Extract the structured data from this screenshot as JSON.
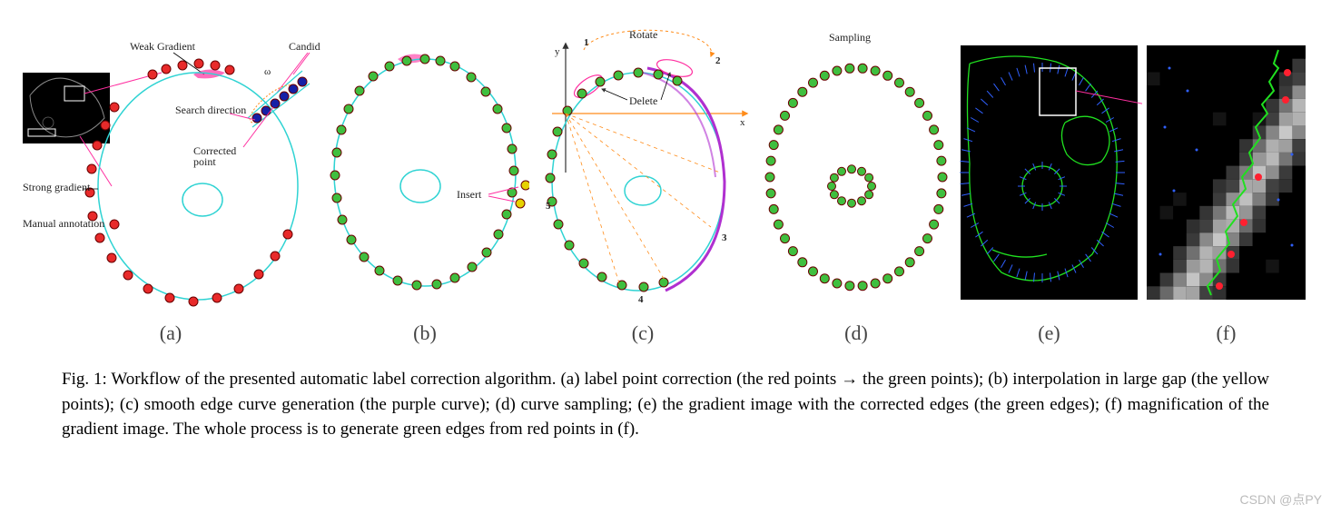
{
  "caption": "Fig. 1: Workflow of the presented automatic label correction algorithm. (a) label point correction (the red points → the green points); (b) interpolation in large gap (the yellow points); (c) smooth edge curve generation (the purple curve); (d) curve sampling; (e) the gradient image with the corrected edges (the green edges); (f) magnification of the gradient image. The whole process is to generate green edges from red points in (f).",
  "panels": {
    "labels": [
      "(a)",
      "(b)",
      "(c)",
      "(d)",
      "(e)",
      "(f)"
    ],
    "a": {
      "annotations": {
        "weakGradient": "Weak Gradient",
        "candidate": "Candidate",
        "searchDirection": "Search direction",
        "correctedPoint": "Corrected point",
        "strongGradient": "Strong gradient",
        "manualAnnotation": "Manual annotation",
        "omega": "ω"
      },
      "colors": {
        "red": "#e82a2a",
        "blue": "#1520a6",
        "cyan": "#2fd3d3",
        "pink": "#ff2fa0",
        "orange": "#ff8c1a",
        "leader": "#000000"
      }
    },
    "b": {
      "annotations": {
        "insert": "Insert"
      },
      "colors": {
        "green": "#3fbf3f",
        "yellow": "#e6d200",
        "cyan": "#2fd3d3",
        "pink": "#ff2fa0"
      }
    },
    "c": {
      "annotations": {
        "rotate": "Rotate",
        "delete": "Delete"
      },
      "colors": {
        "green": "#3fbf3f",
        "cyan": "#2fd3d3",
        "purple": "#b030d0",
        "orange": "#ff8c1a",
        "pink": "#ff2fa0",
        "axis": "#333"
      },
      "markers": [
        "1",
        "2",
        "3",
        "4",
        "5"
      ]
    },
    "d": {
      "annotations": {
        "sampling": "Sampling"
      },
      "colors": {
        "green": "#3fbf3f",
        "cyan": "#2fd3d3"
      }
    },
    "e": {
      "colors": {
        "bg": "#000",
        "edge": "#20e020",
        "short": "#3060ff",
        "box": "#fff",
        "pink": "#ff2fa0"
      }
    },
    "f": {
      "colors": {
        "edge": "#20e020",
        "point": "#ff2030",
        "dot": "#3060ff"
      }
    }
  },
  "watermark": "CSDN @点PY",
  "styling": {
    "dotRadius": 5,
    "dotStrokeWidth": 1,
    "captionFontSize": 19,
    "labelFontSize": 22,
    "annotFontSize": 12
  }
}
